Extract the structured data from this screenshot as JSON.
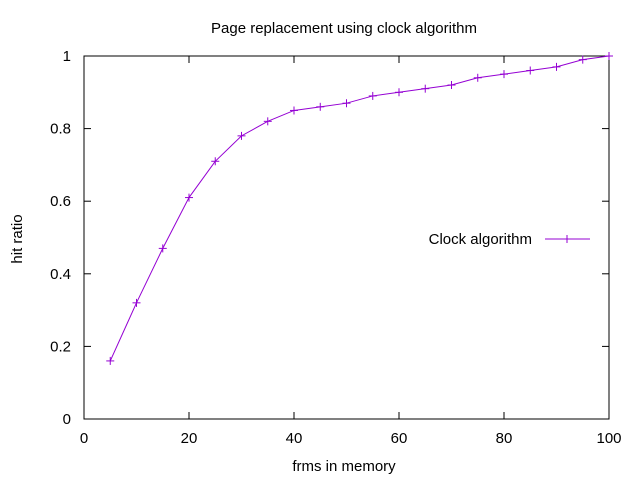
{
  "chart_data": {
    "type": "line",
    "title": "Page replacement using clock algorithm",
    "xlabel": "frms in memory",
    "ylabel": "hit ratio",
    "xlim": [
      0,
      100
    ],
    "ylim": [
      0,
      1
    ],
    "xticks": [
      0,
      20,
      40,
      60,
      80,
      100
    ],
    "yticks": [
      0,
      0.2,
      0.4,
      0.6,
      0.8,
      1
    ],
    "xtick_labels": [
      "0",
      "20",
      "40",
      "60",
      "80",
      "100"
    ],
    "ytick_labels": [
      "0",
      "0.2",
      "0.4",
      "0.6",
      "0.8",
      "1"
    ],
    "grid": false,
    "legend_position": "right",
    "series": [
      {
        "name": "Clock algorithm",
        "color": "#9400d3",
        "marker": "plus",
        "x": [
          5,
          10,
          15,
          20,
          25,
          30,
          35,
          40,
          45,
          50,
          55,
          60,
          65,
          70,
          75,
          80,
          85,
          90,
          95,
          100
        ],
        "y": [
          0.16,
          0.32,
          0.47,
          0.61,
          0.71,
          0.78,
          0.82,
          0.85,
          0.86,
          0.87,
          0.89,
          0.9,
          0.91,
          0.92,
          0.94,
          0.95,
          0.96,
          0.97,
          0.99,
          1.0
        ]
      }
    ]
  }
}
